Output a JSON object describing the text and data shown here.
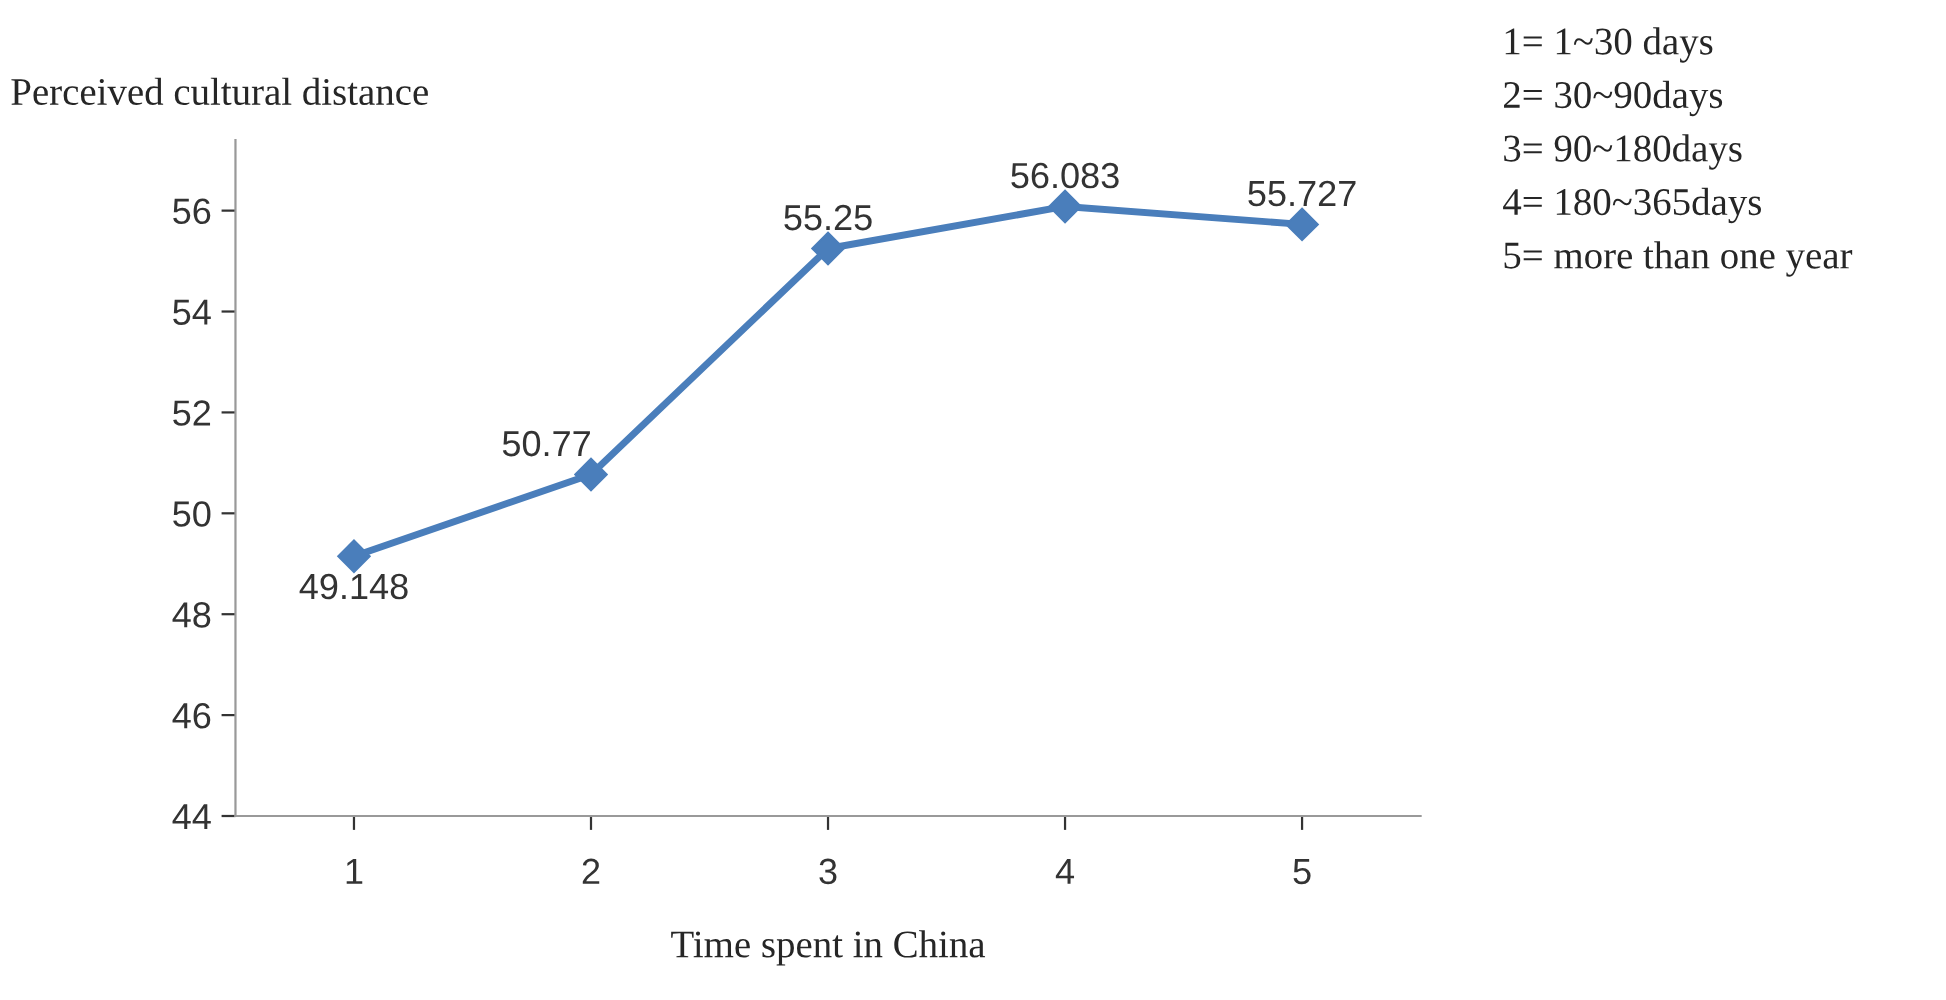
{
  "chart_data": {
    "type": "line",
    "xlabel": "Time spent in China",
    "ylabel": "Perceived cultural distance",
    "categories": [
      "1",
      "2",
      "3",
      "4",
      "5"
    ],
    "series": [
      {
        "color": "#4a7ebb",
        "values": [
          49.148,
          50.77,
          55.25,
          56.083,
          55.727
        ]
      }
    ],
    "ylim": [
      44,
      57.4
    ],
    "yticks": [
      44,
      46,
      48,
      50,
      52,
      54,
      56
    ],
    "marker": "diamond",
    "line_style": "solid",
    "grid": false,
    "legend": false,
    "data_labels": true,
    "annotations": [
      "1= 1~30 days",
      "2= 30~90days",
      "3= 90~180days",
      "4= 180~365days",
      "5= more than one year"
    ]
  }
}
